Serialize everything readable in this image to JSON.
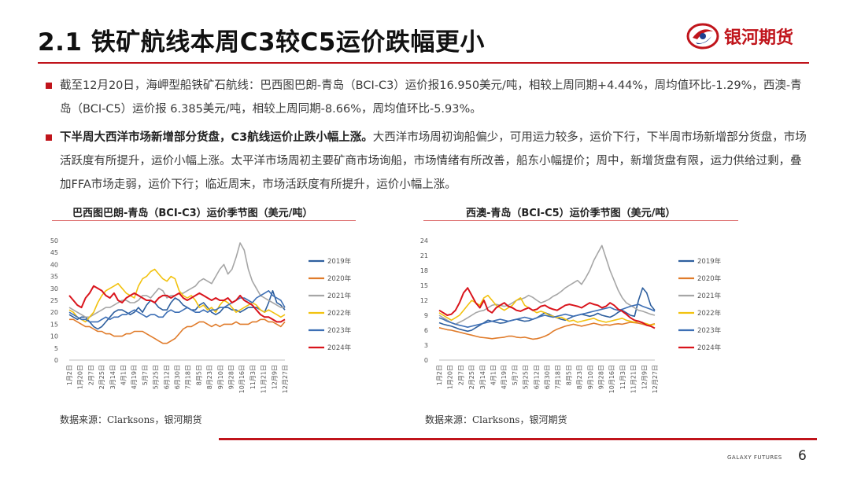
{
  "header": {
    "title": "2.1 铁矿航线本周C3较C5运价跌幅更小",
    "logo_text": "银河期货"
  },
  "paragraphs": {
    "p1": "截至12月20日，海岬型船铁矿石航线：巴西图巴朗-青岛（BCI-C3）运价报16.950美元/吨，相较上周同期+4.44%，周均值环比-1.29%，西澳-青岛（BCI-C5）运价报 6.385美元/吨，相较上周同期-8.66%，周均值环比-5.93%。",
    "p2_bold": "下半周大西洋市场新增部分货盘，C3航线运价止跌小幅上涨。",
    "p2_rest": "大西洋市场周初询船偏少，可用运力较多，运价下行，下半周市场新增部分货盘，市场活跃度有所提升，运价小幅上涨。太平洋市场周初主要矿商市场询船，市场情绪有所改善，船东小幅提价；周中，新增货盘有限，运力供给过剩，叠加FFA市场走弱，运价下行；临近周末，市场活跃度有所提升，运价小幅上涨。"
  },
  "footer": {
    "brand": "GALAXY FUTURES",
    "page": "6"
  },
  "colors": {
    "accent": "#c0141b",
    "2019年": "#2e5f9e",
    "2020年": "#e07b2a",
    "2021年": "#a6a6a6",
    "2022年": "#f2c20f",
    "2023年": "#3d6fb5",
    "2024年": "#d9141c"
  },
  "chart_data": [
    {
      "type": "line",
      "title": "巴西图巴朗-青岛（BCI-C3）运价季节图（美元/吨）",
      "source": "数据来源：Clarksons，银河期货",
      "x_labels": [
        "1月2日",
        "1月20日",
        "2月7日",
        "2月25日",
        "3月14日",
        "4月1日",
        "4月19日",
        "5月7日",
        "5月25日",
        "6月12日",
        "6月30日",
        "7月18日",
        "8月5日",
        "8月23日",
        "9月10日",
        "9月28日",
        "10月16日",
        "11月3日",
        "11月21日",
        "12月9日",
        "12月27日"
      ],
      "y_ticks": [
        0,
        5,
        10,
        15,
        20,
        25,
        30,
        35,
        40,
        45,
        50
      ],
      "ylim": [
        0,
        50
      ],
      "legend_position": "right",
      "series": [
        {
          "name": "2019年",
          "values": [
            19,
            18,
            17,
            18,
            18,
            16,
            14,
            13,
            14,
            16,
            18,
            20,
            21,
            21,
            20,
            19,
            20,
            22,
            20,
            23,
            25,
            24,
            22,
            21,
            21,
            24,
            26,
            25,
            23,
            22,
            21,
            21,
            23,
            24,
            22,
            20,
            19,
            20,
            22,
            22,
            21,
            21,
            20,
            21,
            22,
            22,
            22,
            21,
            20,
            24,
            29,
            24,
            23,
            21
          ]
        },
        {
          "name": "2020年",
          "values": [
            17,
            17,
            16,
            15,
            14,
            14,
            13,
            12,
            12,
            11,
            11,
            10,
            10,
            10,
            11,
            11,
            12,
            12,
            12,
            11,
            10,
            9,
            8,
            7,
            7,
            8,
            9,
            11,
            13,
            14,
            14,
            15,
            16,
            16,
            15,
            14,
            15,
            14,
            15,
            15,
            15,
            16,
            15,
            15,
            15,
            16,
            16,
            17,
            17,
            16,
            16,
            15,
            14,
            16
          ]
        },
        {
          "name": "2021年",
          "values": [
            22,
            21,
            20,
            19,
            18,
            18,
            19,
            20,
            21,
            22,
            22,
            23,
            24,
            25,
            25,
            24,
            24,
            25,
            27,
            27,
            26,
            28,
            30,
            29,
            26,
            27,
            27,
            28,
            28,
            29,
            30,
            31,
            33,
            34,
            33,
            32,
            35,
            38,
            40,
            36,
            38,
            43,
            49,
            46,
            38,
            33,
            30,
            27,
            26,
            25,
            24,
            23,
            22,
            22
          ]
        },
        {
          "name": "2022年",
          "values": [
            21,
            20,
            18,
            17,
            16,
            18,
            20,
            24,
            27,
            29,
            30,
            31,
            32,
            30,
            28,
            27,
            26,
            31,
            34,
            35,
            37,
            38,
            36,
            34,
            33,
            35,
            34,
            29,
            27,
            26,
            27,
            25,
            22,
            23,
            21,
            22,
            20,
            23,
            25,
            24,
            22,
            20,
            21,
            22,
            23,
            24,
            23,
            21,
            20,
            21,
            20,
            19,
            18,
            19
          ]
        },
        {
          "name": "2023年",
          "values": [
            20,
            19,
            18,
            17,
            17,
            16,
            16,
            16,
            17,
            18,
            17,
            18,
            18,
            19,
            19,
            20,
            21,
            20,
            19,
            18,
            19,
            19,
            18,
            18,
            20,
            21,
            20,
            20,
            21,
            22,
            21,
            20,
            20,
            21,
            20,
            21,
            21,
            22,
            22,
            23,
            24,
            25,
            26,
            26,
            25,
            24,
            26,
            27,
            28,
            29,
            27,
            26,
            25,
            22
          ]
        },
        {
          "name": "2024年",
          "values": [
            27,
            25,
            23,
            22,
            26,
            28,
            31,
            30,
            29,
            27,
            26,
            28,
            25,
            24,
            26,
            27,
            28,
            27,
            26,
            25,
            25,
            24,
            26,
            27,
            27,
            26,
            27,
            28,
            26,
            25,
            26,
            27,
            28,
            27,
            26,
            25,
            26,
            25,
            25,
            26,
            24,
            25,
            27,
            25,
            24,
            23,
            21,
            19,
            18,
            18,
            17,
            16,
            16,
            17
          ]
        }
      ]
    },
    {
      "type": "line",
      "title": "西澳-青岛（BCI-C5）运价季节图（美元/吨）",
      "source": "数据来源：Clarksons，银河期货",
      "x_labels": [
        "1月2日",
        "1月20日",
        "2月7日",
        "2月25日",
        "3月14日",
        "4月1日",
        "4月19日",
        "5月7日",
        "5月25日",
        "6月12日",
        "6月30日",
        "7月18日",
        "8月5日",
        "8月23日",
        "9月10日",
        "9月28日",
        "10月16日",
        "11月3日",
        "11月21日",
        "12月9日",
        "12月27日"
      ],
      "y_ticks": [
        0,
        3,
        6,
        9,
        12,
        15,
        18,
        21,
        24
      ],
      "ylim": [
        0,
        24
      ],
      "legend_position": "right",
      "series": [
        {
          "name": "2019年",
          "values": [
            7.5,
            7.2,
            7,
            6.8,
            6.5,
            6.2,
            6.0,
            5.8,
            6.0,
            6.5,
            7.0,
            7.5,
            8.0,
            7.8,
            7.6,
            7.4,
            7.5,
            7.8,
            8.0,
            8.2,
            8.0,
            7.8,
            7.9,
            8.2,
            8.5,
            9.0,
            9.5,
            9.2,
            8.8,
            8.5,
            8.2,
            8.0,
            8.4,
            8.8,
            9.0,
            9.2,
            9.0,
            8.8,
            9.0,
            9.4,
            9.0,
            8.8,
            8.6,
            9.0,
            9.6,
            10.0,
            9.5,
            9.0,
            8.8,
            12.0,
            14.5,
            13.5,
            11.0,
            10.0
          ]
        },
        {
          "name": "2020年",
          "values": [
            6.5,
            6.3,
            6.1,
            6.0,
            5.8,
            5.6,
            5.4,
            5.2,
            5.0,
            4.8,
            4.6,
            4.5,
            4.4,
            4.3,
            4.4,
            4.5,
            4.6,
            4.8,
            4.8,
            4.6,
            4.5,
            4.6,
            4.4,
            4.2,
            4.3,
            4.5,
            4.8,
            5.2,
            5.8,
            6.2,
            6.5,
            6.8,
            7.0,
            7.2,
            7.0,
            6.8,
            7.0,
            7.2,
            7.4,
            7.2,
            7.0,
            7.1,
            7.0,
            7.2,
            7.3,
            7.2,
            7.4,
            7.6,
            7.5,
            7.4,
            7.2,
            7.0,
            7.1,
            7.3
          ]
        },
        {
          "name": "2021年",
          "values": [
            9.0,
            8.5,
            8.0,
            7.5,
            7.2,
            7.6,
            8.0,
            8.5,
            9.0,
            9.5,
            9.8,
            10.0,
            10.5,
            11.0,
            11.2,
            11.0,
            10.8,
            11.0,
            11.5,
            12.0,
            12.2,
            12.5,
            13.0,
            12.6,
            12.0,
            11.5,
            11.8,
            12.2,
            12.8,
            13.2,
            13.8,
            14.5,
            15.0,
            15.5,
            16.0,
            15.2,
            16.5,
            18.0,
            20.0,
            21.5,
            23.0,
            20.5,
            18.0,
            16.0,
            14.0,
            12.5,
            11.5,
            11.0,
            10.5,
            10.0,
            9.8,
            9.5,
            9.2,
            9.0
          ]
        },
        {
          "name": "2022年",
          "values": [
            9.5,
            9.0,
            8.5,
            8.0,
            8.5,
            9.0,
            10.0,
            11.0,
            12.0,
            11.5,
            11.0,
            12.5,
            13.0,
            12.0,
            11.0,
            10.5,
            10.0,
            10.5,
            11.0,
            12.0,
            12.5,
            11.0,
            10.5,
            10.0,
            9.5,
            9.8,
            9.5,
            9.0,
            8.8,
            8.5,
            8.6,
            8.2,
            7.8,
            8.0,
            7.6,
            7.8,
            8.0,
            8.2,
            8.4,
            8.0,
            7.8,
            7.6,
            7.8,
            8.0,
            8.2,
            8.4,
            8.0,
            7.8,
            7.6,
            7.8,
            7.5,
            7.3,
            7.0,
            7.2
          ]
        },
        {
          "name": "2023年",
          "values": [
            8.5,
            8.2,
            7.8,
            7.5,
            7.2,
            7.0,
            6.8,
            6.6,
            6.8,
            7.0,
            7.2,
            7.4,
            7.6,
            7.8,
            8.0,
            8.2,
            8.0,
            7.8,
            8.0,
            8.2,
            8.4,
            8.6,
            8.4,
            8.2,
            8.5,
            8.8,
            9.0,
            8.8,
            8.6,
            8.8,
            9.0,
            9.2,
            9.0,
            8.8,
            9.0,
            9.2,
            9.4,
            9.6,
            9.8,
            10.0,
            10.2,
            10.4,
            10.6,
            10.2,
            10.0,
            10.2,
            10.5,
            10.8,
            11.0,
            11.2,
            10.8,
            10.5,
            10.2,
            9.8
          ]
        },
        {
          "name": "2024年",
          "values": [
            10.0,
            9.5,
            9.0,
            9.2,
            10.0,
            11.5,
            13.5,
            14.5,
            13.0,
            11.5,
            10.5,
            12.0,
            10.0,
            9.5,
            10.5,
            11.0,
            11.5,
            10.8,
            10.5,
            10.0,
            9.8,
            10.2,
            10.5,
            10.0,
            10.2,
            10.8,
            11.0,
            10.5,
            10.2,
            10.0,
            10.5,
            11.0,
            11.2,
            11.0,
            10.8,
            10.5,
            11.0,
            11.5,
            11.2,
            11.0,
            10.5,
            10.8,
            11.5,
            11.0,
            10.2,
            9.8,
            9.2,
            8.5,
            8.0,
            7.8,
            7.5,
            7.0,
            6.8,
            6.4
          ]
        }
      ]
    }
  ]
}
